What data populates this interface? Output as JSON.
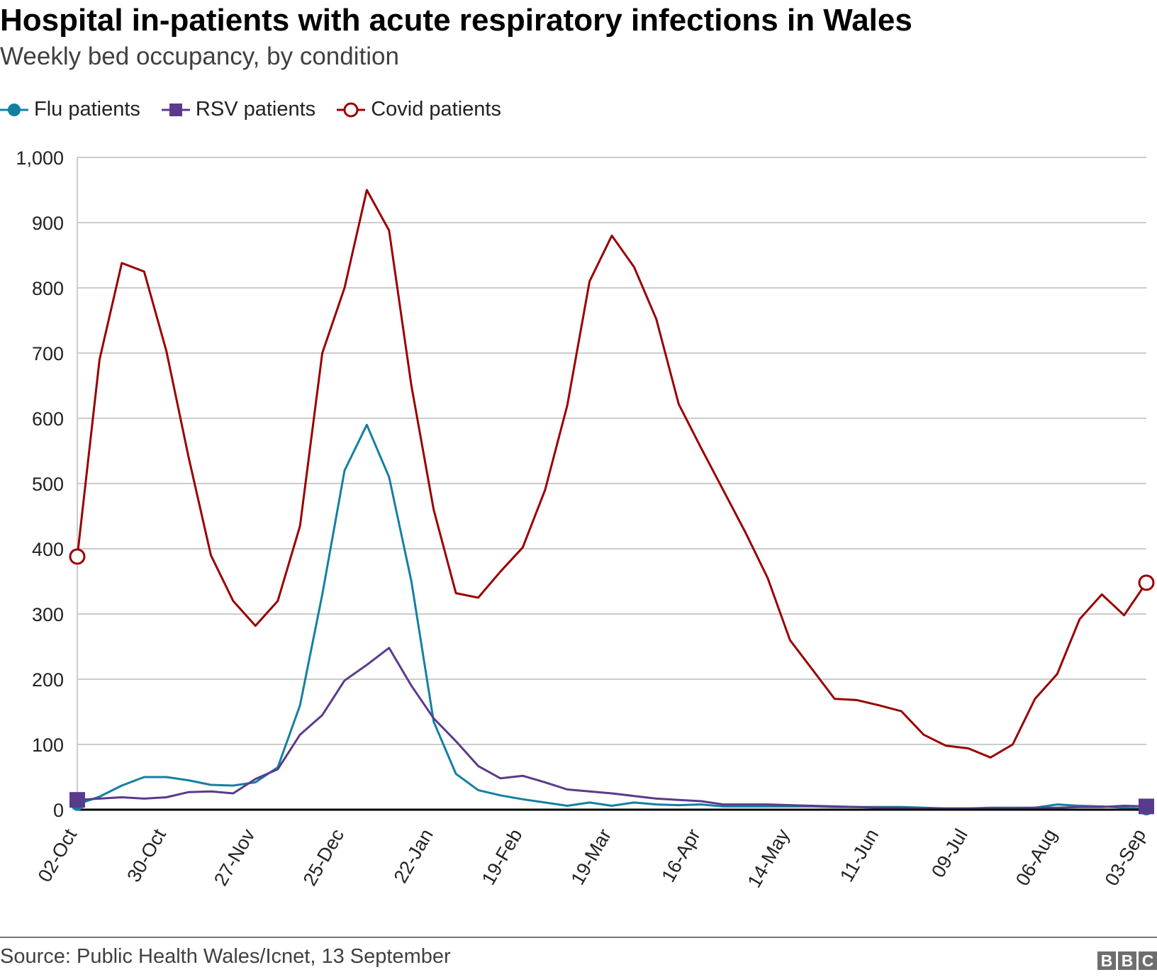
{
  "chart_data": {
    "type": "line",
    "title": "Hospital in-patients with acute respiratory infections in Wales",
    "subtitle": "Weekly bed occupancy, by condition",
    "xlabel": "",
    "ylabel": "",
    "ylim": [
      0,
      1000
    ],
    "yticks": [
      "0",
      "100",
      "200",
      "300",
      "400",
      "500",
      "600",
      "700",
      "800",
      "900",
      "1,000"
    ],
    "ytick_values": [
      0,
      100,
      200,
      300,
      400,
      500,
      600,
      700,
      800,
      900,
      1000
    ],
    "xticks": [
      "02-Oct",
      "30-Oct",
      "27-Nov",
      "25-Dec",
      "22-Jan",
      "19-Feb",
      "19-Mar",
      "16-Apr",
      "14-May",
      "11-Jun",
      "09-Jul",
      "06-Aug",
      "03-Sep"
    ],
    "x": [
      "02-Oct",
      "09-Oct",
      "16-Oct",
      "23-Oct",
      "30-Oct",
      "06-Nov",
      "13-Nov",
      "20-Nov",
      "27-Nov",
      "04-Dec",
      "11-Dec",
      "18-Dec",
      "25-Dec",
      "01-Jan",
      "08-Jan",
      "15-Jan",
      "22-Jan",
      "29-Jan",
      "05-Feb",
      "12-Feb",
      "19-Feb",
      "26-Feb",
      "05-Mar",
      "12-Mar",
      "19-Mar",
      "26-Mar",
      "02-Apr",
      "09-Apr",
      "16-Apr",
      "23-Apr",
      "30-Apr",
      "07-May",
      "14-May",
      "21-May",
      "28-May",
      "04-Jun",
      "11-Jun",
      "18-Jun",
      "25-Jun",
      "02-Jul",
      "09-Jul",
      "16-Jul",
      "23-Jul",
      "30-Jul",
      "06-Aug",
      "13-Aug",
      "20-Aug",
      "27-Aug",
      "03-Sep"
    ],
    "grid": true,
    "legend": "top-left",
    "series": [
      {
        "name": "Flu patients",
        "color": "#1380A1",
        "marker": "filled-circle",
        "values": [
          8,
          20,
          37,
          50,
          50,
          45,
          38,
          37,
          42,
          65,
          160,
          330,
          520,
          590,
          510,
          350,
          135,
          55,
          30,
          22,
          16,
          11,
          6,
          11,
          6,
          11,
          8,
          7,
          8,
          5,
          5,
          5,
          5,
          5,
          4,
          4,
          4,
          4,
          3,
          2,
          2,
          3,
          3,
          3,
          8,
          6,
          5,
          3,
          1
        ]
      },
      {
        "name": "RSV patients",
        "color": "#588",
        "marker": "filled-square",
        "values": [
          15,
          17,
          19,
          17,
          19,
          27,
          28,
          25,
          47,
          62,
          115,
          145,
          198,
          222,
          248,
          190,
          140,
          105,
          67,
          48,
          52,
          42,
          31,
          28,
          25,
          21,
          17,
          15,
          13,
          8,
          8,
          8,
          7,
          6,
          5,
          4,
          3,
          3,
          2,
          2,
          2,
          2,
          2,
          3,
          3,
          4,
          4,
          6,
          5
        ]
      },
      {
        "name": "Covid patients",
        "color": "#990000",
        "marker": "hollow-circle",
        "values": [
          388,
          690,
          838,
          825,
          703,
          540,
          390,
          320,
          282,
          320,
          435,
          700,
          800,
          950,
          888,
          650,
          460,
          332,
          325,
          365,
          402,
          490,
          620,
          810,
          880,
          832,
          752,
          622,
          555,
          490,
          425,
          355,
          260,
          215,
          170,
          168,
          160,
          151,
          115,
          98,
          94,
          80,
          100,
          170,
          208,
          292,
          330,
          298,
          348
        ]
      }
    ]
  },
  "footer": {
    "source": "Source: Public Health Wales/Icnet, 13 September",
    "logo": [
      "B",
      "B",
      "C"
    ]
  }
}
